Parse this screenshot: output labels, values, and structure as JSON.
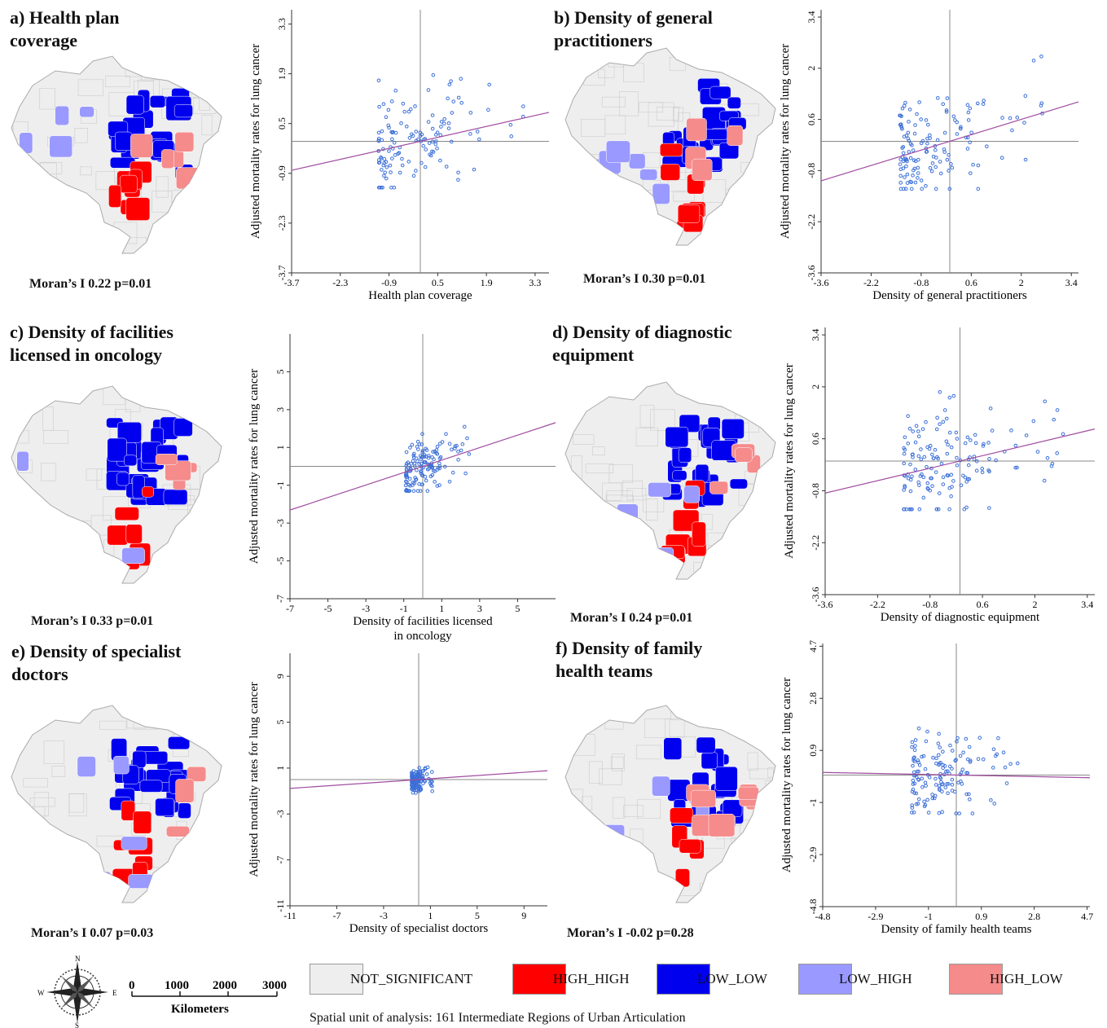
{
  "panels": [
    {
      "id": "a",
      "title": "a) Health plan\ncoverage",
      "moran": "Moran’s I 0.22 p=0.01",
      "map_counts": {
        "HIGH_HIGH": 8,
        "LOW_LOW": 22,
        "LOW_HIGH": 6,
        "HIGH_LOW": 5
      },
      "chart_data": {
        "type": "scatter",
        "xlabel": "Health plan coverage",
        "ylabel": "Adjusted mortality rates for lung cancer",
        "xlim": [
          -3.7,
          3.7
        ],
        "ylim": [
          -3.7,
          3.7
        ],
        "xticks": [
          "-3.7",
          "-2.3",
          "-0.9",
          "0.5",
          "1.9",
          "3.3"
        ],
        "yticks": [
          "-3.7",
          "-2.3",
          "-0.9",
          "0.5",
          "1.9",
          "3.3"
        ],
        "xtick_values": [
          -3.7,
          -2.3,
          -0.9,
          0.5,
          1.9,
          3.3
        ],
        "ytick_values": [
          -3.7,
          -2.3,
          -0.9,
          0.5,
          1.9,
          3.3
        ],
        "fit": {
          "slope": 0.22,
          "intercept": 0
        },
        "x_center": 0,
        "y_center": 0,
        "cloud": {
          "xmin": -1.2,
          "xmax": 3.0,
          "ymin": -1.3,
          "ymax": 3.0,
          "n": 130,
          "seed": 11
        }
      }
    },
    {
      "id": "b",
      "title": "b) Density of general\npractitioners",
      "moran": "Moran’s I 0.30 p=0.01",
      "map_counts": {
        "HIGH_HIGH": 9,
        "LOW_LOW": 24,
        "LOW_HIGH": 7,
        "HIGH_LOW": 4
      },
      "chart_data": {
        "type": "scatter",
        "xlabel": "Density of general practitioners",
        "ylabel": "Adjusted mortality rates for lung cancer",
        "xlim": [
          -3.6,
          3.6
        ],
        "ylim": [
          -3.6,
          3.6
        ],
        "xticks": [
          "-3.6",
          "-2.2",
          "-0.8",
          "0.6",
          "2",
          "3.4"
        ],
        "yticks": [
          "-3.6",
          "-2.2",
          "-0.8",
          "0.6",
          "2",
          "3.4"
        ],
        "xtick_values": [
          -3.6,
          -2.2,
          -0.8,
          0.6,
          2,
          3.4
        ],
        "ytick_values": [
          -3.6,
          -2.2,
          -0.8,
          0.6,
          2,
          3.4
        ],
        "fit": {
          "slope": 0.3,
          "intercept": 0
        },
        "x_center": 0,
        "y_center": 0,
        "cloud": {
          "xmin": -1.4,
          "xmax": 2.6,
          "ymin": -1.3,
          "ymax": 3.0,
          "n": 140,
          "seed": 23
        }
      }
    },
    {
      "id": "c",
      "title": "c) Density of facilities\nlicensed in oncology",
      "moran": "Moran’s I 0.33 p=0.01",
      "map_counts": {
        "HIGH_HIGH": 6,
        "LOW_LOW": 26,
        "LOW_HIGH": 5,
        "HIGH_LOW": 4
      },
      "chart_data": {
        "type": "scatter",
        "xlabel": "Density of facilities licensed\nin oncology",
        "ylabel": "Adjusted mortality rates for lung cancer",
        "xlim": [
          -7,
          7
        ],
        "ylim": [
          -7,
          7
        ],
        "xticks": [
          "-7",
          "-5",
          "-3",
          "-1",
          "1",
          "3",
          "5"
        ],
        "yticks": [
          "-7",
          "-5",
          "-3",
          "-1",
          "1",
          "3",
          "5"
        ],
        "xtick_values": [
          -7,
          -5,
          -3,
          -1,
          1,
          3,
          5
        ],
        "ytick_values": [
          -7,
          -5,
          -3,
          -1,
          1,
          3,
          5
        ],
        "fit": {
          "slope": 0.33,
          "intercept": 0
        },
        "x_center": 0,
        "y_center": 0,
        "cloud": {
          "xmin": -0.9,
          "xmax": 2.5,
          "ymin": -1.3,
          "ymax": 2.7,
          "n": 140,
          "seed": 37
        }
      }
    },
    {
      "id": "d",
      "title": "d) Density of diagnostic\nequipment",
      "moran": "Moran’s I 0.24 p=0.01",
      "map_counts": {
        "HIGH_HIGH": 8,
        "LOW_LOW": 25,
        "LOW_HIGH": 5,
        "HIGH_LOW": 4
      },
      "chart_data": {
        "type": "scatter",
        "xlabel": "Density of diagnostic equipment",
        "ylabel": "Adjusted mortality rates for lung cancer",
        "xlim": [
          -3.6,
          3.6
        ],
        "ylim": [
          -3.6,
          3.6
        ],
        "xticks": [
          "-3.6",
          "-2.2",
          "-0.8",
          "0.6",
          "2",
          "3.4"
        ],
        "yticks": [
          "-3.6",
          "-2.2",
          "-0.8",
          "0.6",
          "2",
          "3.4"
        ],
        "xtick_values": [
          -3.6,
          -2.2,
          -0.8,
          0.6,
          2,
          3.4
        ],
        "ytick_values": [
          -3.6,
          -2.2,
          -0.8,
          0.6,
          2,
          3.4
        ],
        "fit": {
          "slope": 0.24,
          "intercept": 0
        },
        "x_center": 0,
        "y_center": 0,
        "cloud": {
          "xmin": -1.5,
          "xmax": 2.8,
          "ymin": -1.3,
          "ymax": 3.1,
          "n": 150,
          "seed": 41
        }
      }
    },
    {
      "id": "e",
      "title": "e) Density of specialist\ndoctors",
      "moran": "Moran’s I 0.07 p=0.03",
      "map_counts": {
        "HIGH_HIGH": 7,
        "LOW_LOW": 22,
        "LOW_HIGH": 6,
        "HIGH_LOW": 3
      },
      "chart_data": {
        "type": "scatter",
        "xlabel": "Density of specialist doctors",
        "ylabel": "Adjusted mortality rates for lung cancer",
        "xlim": [
          -11,
          11
        ],
        "ylim": [
          -11,
          11
        ],
        "xticks": [
          "-11",
          "-7",
          "-3",
          "1",
          "5",
          "9"
        ],
        "yticks": [
          "-11",
          "-7",
          "-3",
          "1",
          "5",
          "9"
        ],
        "xtick_values": [
          -11,
          -7,
          -3,
          1,
          5,
          9
        ],
        "ytick_values": [
          -11,
          -7,
          -3,
          1,
          5,
          9
        ],
        "fit": {
          "slope": 0.07,
          "intercept": 0
        },
        "x_center": 0,
        "y_center": 0,
        "cloud": {
          "xmin": -0.6,
          "xmax": 1.2,
          "ymin": -1.4,
          "ymax": 1.5,
          "n": 130,
          "seed": 53
        }
      }
    },
    {
      "id": "f",
      "title": "f) Density of family\nhealth teams",
      "moran": "Moran’s I -0.02 p=0.28",
      "map_counts": {
        "HIGH_HIGH": 5,
        "LOW_LOW": 18,
        "LOW_HIGH": 5,
        "HIGH_LOW": 7
      },
      "chart_data": {
        "type": "scatter",
        "xlabel": "Density of family health teams",
        "ylabel": "Adjusted mortality rates for lung cancer",
        "xlim": [
          -4.8,
          4.8
        ],
        "ylim": [
          -4.8,
          4.8
        ],
        "xticks": [
          "-4.8",
          "-2.9",
          "-1",
          "0.9",
          "2.8",
          "4.7"
        ],
        "yticks": [
          "-4.8",
          "-2.9",
          "-1",
          "0.9",
          "2.8",
          "4.7"
        ],
        "xtick_values": [
          -4.8,
          -2.9,
          -1,
          0.9,
          2.8,
          4.7
        ],
        "ytick_values": [
          -4.8,
          -2.9,
          -1,
          0.9,
          2.8,
          4.7
        ],
        "fit": {
          "slope": -0.02,
          "intercept": 0
        },
        "x_center": 0,
        "y_center": 0,
        "cloud": {
          "xmin": -1.6,
          "xmax": 2.4,
          "ymin": -1.4,
          "ymax": 3.0,
          "n": 140,
          "seed": 67
        }
      }
    }
  ],
  "legend": {
    "items": [
      {
        "label": "NOT_SIGNIFICANT",
        "color": "#eeeeee"
      },
      {
        "label": "HIGH_HIGH",
        "color": "#ff0000"
      },
      {
        "label": "LOW_LOW",
        "color": "#0000ee"
      },
      {
        "label": "LOW_HIGH",
        "color": "#9999ff"
      },
      {
        "label": "HIGH_LOW",
        "color": "#f58b8b"
      }
    ]
  },
  "scale": {
    "ticks": [
      "0",
      "1000",
      "2000",
      "3000"
    ],
    "unit": "Kilometers"
  },
  "compass": {
    "N": "N",
    "S": "S",
    "E": "E",
    "W": "W"
  },
  "footnote": "Spatial unit of analysis: 161 Intermediate Regions of Urban Articulation",
  "colors": {
    "point": "#3b6fd8",
    "fit": "#a04da0",
    "axis": "#888888",
    "map_bg": "#eeeeee",
    "map_edge": "#aaaaaa"
  }
}
